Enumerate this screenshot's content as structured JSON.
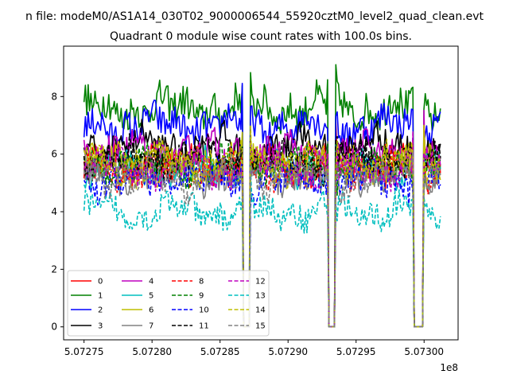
{
  "chart_data": {
    "type": "line",
    "suptitle": "n file: modeM0/AS1A14_030T02_9000006544_55920cztM0_level2_quad_clean.evt",
    "title": "Quadrant 0 module wise count rates with 100.0s bins.",
    "xlabel": "",
    "ylabel": "",
    "x_offset_label": "1e8",
    "xlim": [
      5.072735,
      5.073025
    ],
    "ylim": [
      -0.45,
      9.75
    ],
    "x_range": [
      5.07275,
      5.073012
    ],
    "xticks": [
      5.07275,
      5.0728,
      5.07285,
      5.0729,
      5.07295,
      5.073
    ],
    "xtick_labels": [
      "5.07275",
      "5.07280",
      "5.07285",
      "5.07290",
      "5.07295",
      "5.07300"
    ],
    "yticks": [
      0,
      2,
      4,
      6,
      8
    ],
    "ytick_labels": [
      "0",
      "2",
      "4",
      "6",
      "8"
    ],
    "gaps": [
      [
        5.072867,
        5.072872
      ],
      [
        5.07293,
        5.072935
      ],
      [
        5.072992,
        5.072999
      ]
    ],
    "legend_location": "lower-left",
    "series": [
      {
        "name": "0",
        "color": "#ff0000",
        "dash": "solid",
        "base": 5.6,
        "amp": 0.55
      },
      {
        "name": "1",
        "color": "#008000",
        "dash": "solid",
        "base": 7.6,
        "amp": 0.6
      },
      {
        "name": "2",
        "color": "#0000ff",
        "dash": "solid",
        "base": 7.0,
        "amp": 0.55
      },
      {
        "name": "3",
        "color": "#000000",
        "dash": "solid",
        "base": 6.3,
        "amp": 0.5
      },
      {
        "name": "4",
        "color": "#bf00bf",
        "dash": "solid",
        "base": 6.0,
        "amp": 0.55
      },
      {
        "name": "5",
        "color": "#00bfbf",
        "dash": "solid",
        "base": 5.5,
        "amp": 0.5
      },
      {
        "name": "6",
        "color": "#bfbf00",
        "dash": "solid",
        "base": 5.6,
        "amp": 0.55
      },
      {
        "name": "7",
        "color": "#808080",
        "dash": "solid",
        "base": 5.3,
        "amp": 0.5
      },
      {
        "name": "8",
        "color": "#ff0000",
        "dash": "dashed",
        "base": 5.5,
        "amp": 0.5
      },
      {
        "name": "9",
        "color": "#008000",
        "dash": "dashed",
        "base": 5.6,
        "amp": 0.5
      },
      {
        "name": "10",
        "color": "#0000ff",
        "dash": "dashed",
        "base": 5.1,
        "amp": 0.5
      },
      {
        "name": "11",
        "color": "#000000",
        "dash": "dashed",
        "base": 5.8,
        "amp": 0.5
      },
      {
        "name": "12",
        "color": "#bf00bf",
        "dash": "dashed",
        "base": 5.5,
        "amp": 0.5
      },
      {
        "name": "13",
        "color": "#00bfbf",
        "dash": "dashed",
        "base": 4.0,
        "amp": 0.45
      },
      {
        "name": "14",
        "color": "#bfbf00",
        "dash": "dashed",
        "base": 5.7,
        "amp": 0.55
      },
      {
        "name": "15",
        "color": "#808080",
        "dash": "dashed",
        "base": 5.2,
        "amp": 0.5
      }
    ]
  }
}
